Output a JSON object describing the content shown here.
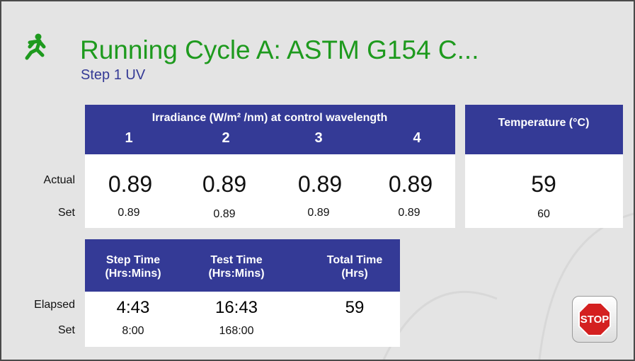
{
  "header": {
    "title": "Running Cycle A: ASTM G154 C...",
    "subtitle": "Step 1 UV"
  },
  "irradiance": {
    "title": "Irradiance (W/m² /nm) at control wavelength",
    "columns": [
      "1",
      "2",
      "3",
      "4"
    ],
    "actual": [
      "0.89",
      "0.89",
      "0.89",
      "0.89"
    ],
    "set": [
      "0.89",
      "0.89",
      "0.89",
      "0.89"
    ]
  },
  "temperature": {
    "title": "Temperature (°C)",
    "actual": "59",
    "set": "60"
  },
  "row_labels": {
    "actual": "Actual",
    "set": "Set",
    "elapsed": "Elapsed",
    "time_set": "Set"
  },
  "times": {
    "columns": [
      {
        "title": "Step Time",
        "unit": "(Hrs:Mins)",
        "elapsed": "4:43",
        "set": "8:00"
      },
      {
        "title": "Test Time",
        "unit": "(Hrs:Mins)",
        "elapsed": "16:43",
        "set": "168:00"
      },
      {
        "title": "Total Time",
        "unit": "(Hrs)",
        "elapsed": "59"
      }
    ]
  },
  "stop_button": "STOP"
}
